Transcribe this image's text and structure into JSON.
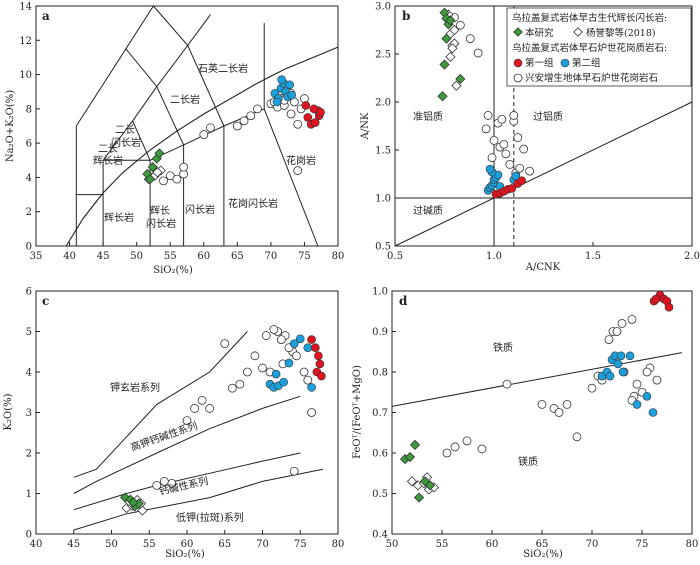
{
  "chart_data": [
    {
      "type": "scatter",
      "panel": "a",
      "xlabel": "SiO₂(%)",
      "ylabel": "Na₂O+K₂O(%)",
      "xlim": [
        35,
        80
      ],
      "ylim": [
        0,
        14
      ],
      "xticks": [
        35,
        40,
        45,
        50,
        55,
        60,
        65,
        70,
        75,
        80
      ],
      "yticks": [
        0,
        2,
        4,
        6,
        8,
        10,
        12,
        14
      ],
      "fields": [
        "石英二长岩",
        "二长岩",
        "二长\n闪长岩",
        "二长\n辉长岩",
        "花岗岩",
        "花岗闪长岩",
        "闪长岩",
        "辉长\n闪长岩",
        "辉长岩"
      ],
      "series": [
        {
          "key": "ben",
          "x": [
            51.6,
            52.4,
            53.0,
            52.0,
            53.4
          ],
          "y": [
            4.2,
            4.6,
            5.1,
            3.9,
            5.4
          ]
        },
        {
          "key": "yang",
          "x": [
            51.8,
            52.7,
            53.6,
            53.1
          ],
          "y": [
            3.9,
            4.1,
            4.4,
            4.3
          ]
        },
        {
          "key": "group1",
          "x": [
            75.5,
            76.0,
            76.6,
            77.0,
            77.2,
            77.4,
            76.4,
            75.2
          ],
          "y": [
            7.5,
            7.1,
            7.2,
            7.9,
            7.6,
            7.8,
            8.0,
            8.2
          ]
        },
        {
          "key": "group2",
          "x": [
            70.6,
            71.1,
            71.5,
            71.9,
            72.2,
            72.5,
            72.8,
            73.1,
            70.9,
            71.6
          ],
          "y": [
            8.9,
            8.6,
            9.2,
            9.5,
            9.0,
            8.7,
            9.4,
            8.8,
            8.4,
            9.7
          ]
        },
        {
          "key": "xingan",
          "x": [
            54,
            55,
            56,
            57,
            57,
            60,
            61,
            65,
            66,
            67,
            68,
            70,
            70.5,
            71,
            71.5,
            72,
            72.5,
            73,
            73.5,
            74,
            74.5,
            75,
            73,
            74,
            72
          ],
          "y": [
            3.8,
            4.1,
            3.9,
            4.2,
            4.6,
            6.5,
            6.9,
            7.0,
            7.3,
            7.6,
            8.0,
            8.3,
            8.4,
            8.1,
            8.6,
            8.2,
            8.8,
            7.7,
            8.4,
            7.1,
            8.0,
            8.6,
            8.9,
            4.4,
            8.5
          ]
        }
      ]
    },
    {
      "type": "scatter",
      "panel": "b",
      "xlabel": "A/CNK",
      "ylabel": "A/NK",
      "xlim": [
        0.5,
        2.0
      ],
      "ylim": [
        0.5,
        3.0
      ],
      "xticks": [
        "0.5",
        "1.0",
        "1.5",
        "2.0"
      ],
      "yticks": [
        "0.5",
        "1.0",
        "1.5",
        "2.0",
        "2.5",
        "3.0"
      ],
      "fields": [
        "准铝质",
        "过铝质",
        "过碱质"
      ],
      "series": [
        {
          "key": "ben",
          "x": [
            0.75,
            0.76,
            0.77,
            0.75,
            0.83,
            0.74,
            0.78,
            0.76
          ],
          "y": [
            2.93,
            2.87,
            2.81,
            2.39,
            2.24,
            2.06,
            2.85,
            2.66
          ]
        },
        {
          "key": "yang",
          "x": [
            0.77,
            0.78,
            0.79,
            0.8,
            0.8,
            0.79,
            0.81,
            0.78
          ],
          "y": [
            2.91,
            2.71,
            2.59,
            2.61,
            2.75,
            2.56,
            2.17,
            2.47
          ]
        },
        {
          "key": "group1",
          "x": [
            1.01,
            1.03,
            1.05,
            1.07,
            1.09,
            1.12,
            1.14
          ],
          "y": [
            1.04,
            1.05,
            1.07,
            1.09,
            1.1,
            1.15,
            1.18
          ]
        },
        {
          "key": "group2",
          "x": [
            0.97,
            0.98,
            0.99,
            1.0,
            1.0,
            1.01,
            1.02,
            0.99,
            1.03,
            1.1,
            1.11,
            0.98
          ],
          "y": [
            1.08,
            1.11,
            1.13,
            1.16,
            1.19,
            1.21,
            1.24,
            1.27,
            1.12,
            1.19,
            1.23,
            1.3
          ]
        },
        {
          "key": "xingan",
          "x": [
            0.8,
            0.83,
            0.88,
            0.92,
            0.97,
            0.96,
            1.0,
            1.03,
            1.05,
            1.08,
            1.11,
            1.12,
            1.15,
            1.02,
            1.04,
            1.1,
            1.06,
            0.99,
            1.13,
            1.18,
            1.1
          ],
          "y": [
            2.88,
            2.8,
            2.66,
            2.51,
            1.86,
            1.72,
            1.6,
            1.53,
            1.56,
            1.35,
            1.26,
            1.63,
            1.51,
            1.78,
            1.82,
            1.8,
            1.46,
            1.42,
            1.31,
            1.28,
            1.86
          ]
        }
      ]
    },
    {
      "type": "scatter",
      "panel": "c",
      "xlabel": "SiO₂(%)",
      "ylabel": "K₂O(%)",
      "xlim": [
        40,
        80
      ],
      "ylim": [
        0,
        6
      ],
      "xticks": [
        40,
        45,
        50,
        55,
        60,
        65,
        70,
        75,
        80
      ],
      "yticks": [
        0,
        1,
        2,
        3,
        4,
        5,
        6
      ],
      "fields": [
        "钾玄岩系列",
        "高钾钙碱性系列",
        "钙碱性系列",
        "低钾(拉斑)系列"
      ],
      "series": [
        {
          "key": "ben",
          "x": [
            51.8,
            52.5,
            53.1,
            53.6,
            52.9
          ],
          "y": [
            0.9,
            0.85,
            0.68,
            0.75,
            0.78
          ]
        },
        {
          "key": "yang",
          "x": [
            52.0,
            52.7,
            53.4,
            54.1,
            52.3,
            53.9
          ],
          "y": [
            0.64,
            0.7,
            0.84,
            0.58,
            0.81,
            0.75
          ]
        },
        {
          "key": "group1",
          "x": [
            76.5,
            77.0,
            77.4,
            77.6,
            77.2,
            77.8
          ],
          "y": [
            4.8,
            4.6,
            4.4,
            4.2,
            4.0,
            3.9
          ]
        },
        {
          "key": "group2",
          "x": [
            71.0,
            71.5,
            72.1,
            72.8,
            73.5,
            74.2,
            75.0,
            76.0,
            71.8,
            76.5
          ],
          "y": [
            3.7,
            3.62,
            3.66,
            3.75,
            4.22,
            4.7,
            4.82,
            4.6,
            3.95,
            3.62
          ]
        },
        {
          "key": "xingan",
          "x": [
            56,
            57,
            58,
            60,
            61,
            62,
            63,
            65,
            66,
            67,
            68,
            69,
            70,
            71,
            72,
            73,
            74,
            72.5,
            73.5,
            70.5,
            71.5,
            72.7,
            74.5,
            75.5,
            76,
            76.5,
            74.2
          ],
          "y": [
            1.2,
            1.3,
            1.25,
            2.8,
            3.1,
            3.3,
            3.1,
            4.7,
            3.6,
            3.7,
            4.0,
            4.4,
            4.1,
            4.0,
            5.0,
            4.9,
            4.5,
            4.8,
            4.6,
            4.9,
            5.05,
            4.2,
            4.4,
            4.0,
            3.8,
            3.0,
            1.55
          ]
        }
      ]
    },
    {
      "type": "scatter",
      "panel": "d",
      "xlabel": "SiO₂(%)",
      "ylabel": "FeOᵀ/(FeOᵀ+MgO)",
      "xlim": [
        50,
        80
      ],
      "ylim": [
        0.4,
        1.0
      ],
      "xticks": [
        50,
        55,
        60,
        65,
        70,
        75,
        80
      ],
      "yticks": [
        "0.4",
        "0.5",
        "0.6",
        "0.7",
        "0.8",
        "0.9",
        "1.0"
      ],
      "fields": [
        "铁质",
        "镁质"
      ],
      "series": [
        {
          "key": "ben",
          "x": [
            51.3,
            51.8,
            52.3,
            52.7,
            53.3,
            53.8
          ],
          "y": [
            0.585,
            0.59,
            0.62,
            0.49,
            0.53,
            0.52
          ]
        },
        {
          "key": "yang",
          "x": [
            52.6,
            53.2,
            53.7,
            54.2,
            52.0,
            53.5
          ],
          "y": [
            0.52,
            0.525,
            0.51,
            0.515,
            0.53,
            0.54
          ]
        },
        {
          "key": "group1",
          "x": [
            76.2,
            76.8,
            77.2,
            77.5,
            77.7,
            76.4
          ],
          "y": [
            0.975,
            0.99,
            0.98,
            0.975,
            0.96,
            0.98
          ]
        },
        {
          "key": "group2",
          "x": [
            71.0,
            71.5,
            72.0,
            72.3,
            72.6,
            73.1,
            73.8,
            74.5,
            75.5,
            76.1,
            71.8,
            72.9
          ],
          "y": [
            0.79,
            0.8,
            0.83,
            0.84,
            0.82,
            0.8,
            0.84,
            0.72,
            0.74,
            0.7,
            0.79,
            0.84
          ]
        },
        {
          "key": "xingan",
          "x": [
            55.5,
            56.3,
            57.5,
            59,
            61.5,
            65,
            66.2,
            66.7,
            67.5,
            70,
            70.6,
            71.7,
            72.1,
            72.5,
            73.2,
            74.2,
            74.5,
            75.0,
            75.8,
            76.5,
            68.5,
            73.0,
            71.0,
            74.0,
            75.5,
            74.0
          ],
          "y": [
            0.6,
            0.615,
            0.63,
            0.61,
            0.77,
            0.72,
            0.71,
            0.7,
            0.72,
            0.76,
            0.79,
            0.88,
            0.9,
            0.9,
            0.8,
            0.74,
            0.77,
            0.75,
            0.81,
            0.78,
            0.64,
            0.92,
            0.78,
            0.93,
            0.8,
            0.73
          ]
        }
      ]
    }
  ],
  "panel_labels": [
    "a",
    "b",
    "c",
    "d"
  ],
  "legend": {
    "title1": "乌拉盖复式岩体早古生代辉长闪长岩:",
    "ben": "本研究",
    "yang": "杨誉黎等(2018)",
    "title2": "乌拉盖复式岩体早石炉世花岗质岩石:",
    "group1": "第一组",
    "group2": "第二组",
    "xingan": "兴安增生地体早石炉世花岗岩石"
  },
  "colors": {
    "ben": "#3c9c3c",
    "yang": "#ffffff",
    "group1": "#e0141e",
    "group2": "#1ba0dc",
    "xingan": "#ffffff",
    "stroke": "#333333"
  }
}
